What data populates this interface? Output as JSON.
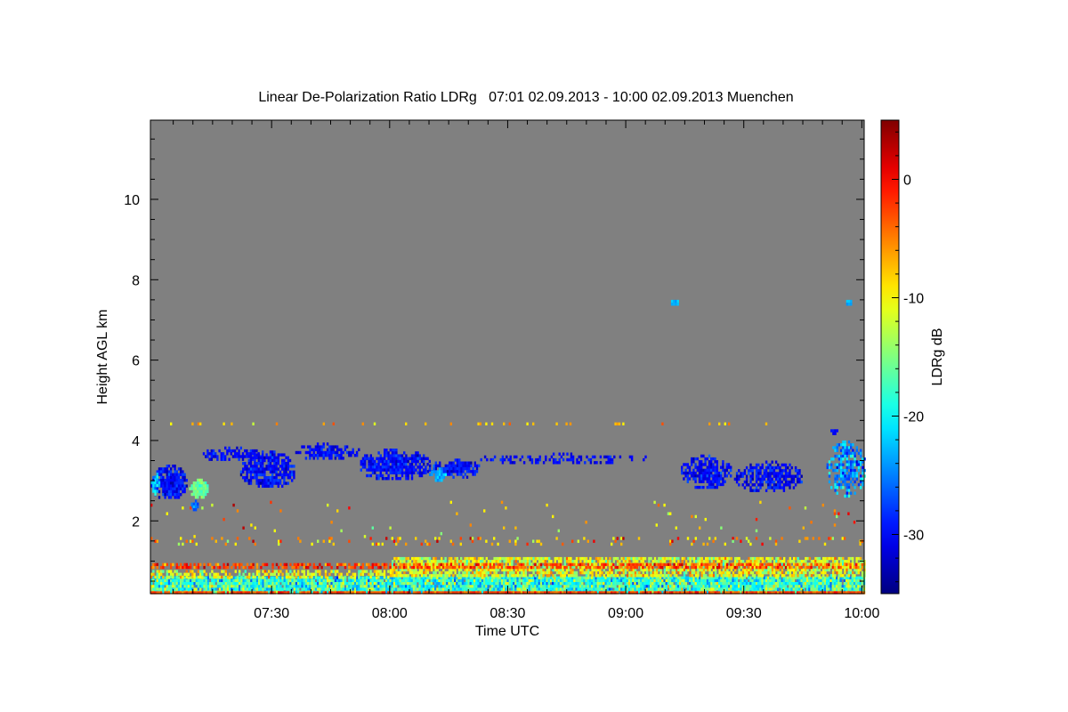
{
  "chart_data": {
    "type": "heatmap",
    "title": "Linear De-Polarization Ratio LDRg   07:01 02.09.2013 - 10:00 02.09.2013 Muenchen",
    "xlabel": "Time UTC",
    "ylabel": "Height AGL km",
    "colorbar_label": "LDRg dB",
    "x_unit": "minutes after 07:00 UTC",
    "xlim": [
      -0.8,
      180.6
    ],
    "ylim": [
      0.19,
      11.97
    ],
    "clim": [
      -35,
      5
    ],
    "colormap": "jet",
    "no_data_color": "#808080",
    "x_ticks": [
      {
        "value": 30,
        "label": "07:30"
      },
      {
        "value": 60,
        "label": "08:00"
      },
      {
        "value": 90,
        "label": "08:30"
      },
      {
        "value": 120,
        "label": "09:00"
      },
      {
        "value": 150,
        "label": "09:30"
      },
      {
        "value": 180,
        "label": "10:00"
      }
    ],
    "y_ticks": [
      {
        "value": 2,
        "label": "2"
      },
      {
        "value": 4,
        "label": "4"
      },
      {
        "value": 6,
        "label": "6"
      },
      {
        "value": 8,
        "label": "8"
      },
      {
        "value": 10,
        "label": "10"
      }
    ],
    "colorbar_ticks": [
      {
        "value": 0,
        "label": "0"
      },
      {
        "value": -10,
        "label": "-10"
      },
      {
        "value": -20,
        "label": "-20"
      },
      {
        "value": -30,
        "label": "-30"
      }
    ],
    "features": [
      {
        "name": "cloud-west-edge",
        "t": [
          -0.8,
          8.5
        ],
        "h": [
          2.55,
          3.4
        ],
        "ldr": -30,
        "spread": 2,
        "density": 0.9
      },
      {
        "name": "cloud-west-edge-core",
        "t": [
          -0.8,
          1.5
        ],
        "h": [
          2.7,
          3.2
        ],
        "ldr": -22,
        "spread": 3,
        "density": 0.9
      },
      {
        "name": "plume-green",
        "t": [
          9,
          14
        ],
        "h": [
          2.6,
          3.05
        ],
        "ldr": -16,
        "spread": 1.5,
        "density": 0.95
      },
      {
        "name": "plume-fall",
        "t": [
          9.5,
          11
        ],
        "h": [
          2.2,
          2.6
        ],
        "ldr": -26,
        "spread": 2,
        "density": 0.8
      },
      {
        "name": "cloud-strip-1",
        "t": [
          12.5,
          27
        ],
        "h": [
          3.5,
          3.85
        ],
        "ldr": -30,
        "spread": 1.5,
        "density": 0.6
      },
      {
        "name": "cloud-blob-1",
        "t": [
          22,
          36
        ],
        "h": [
          2.85,
          3.75
        ],
        "ldr": -30,
        "spread": 2,
        "density": 0.8
      },
      {
        "name": "cloud-strip-2",
        "t": [
          36,
          52
        ],
        "h": [
          3.55,
          3.95
        ],
        "ldr": -30,
        "spread": 1.5,
        "density": 0.75
      },
      {
        "name": "cloud-blob-2",
        "t": [
          52,
          70
        ],
        "h": [
          3.05,
          3.8
        ],
        "ldr": -30,
        "spread": 2,
        "density": 0.8
      },
      {
        "name": "cloud-blob-3",
        "t": [
          69.5,
          83
        ],
        "h": [
          3.1,
          3.55
        ],
        "ldr": -30,
        "spread": 2,
        "density": 0.8
      },
      {
        "name": "cloud-blob-3-cyan",
        "t": [
          70,
          74
        ],
        "h": [
          3.0,
          3.4
        ],
        "ldr": -23,
        "spread": 2,
        "density": 0.8
      },
      {
        "name": "cloud-strip-3",
        "t": [
          83,
          126
        ],
        "h": [
          3.45,
          3.7
        ],
        "ldr": -30,
        "spread": 1.5,
        "density": 0.45
      },
      {
        "name": "cloud-blob-4",
        "t": [
          134,
          146.5
        ],
        "h": [
          2.85,
          3.65
        ],
        "ldr": -30,
        "spread": 2,
        "density": 0.8
      },
      {
        "name": "cloud-blob-5",
        "t": [
          147.5,
          164.5
        ],
        "h": [
          2.75,
          3.5
        ],
        "ldr": -30,
        "spread": 2,
        "density": 0.75
      },
      {
        "name": "cloud-east-edge",
        "t": [
          171,
          180.6
        ],
        "h": [
          2.65,
          4.0
        ],
        "ldr": -24,
        "spread": 4,
        "density": 0.7
      },
      {
        "name": "cloud-east-top",
        "t": [
          172,
          174
        ],
        "h": [
          4.2,
          4.35
        ],
        "ldr": -30,
        "spread": 1,
        "density": 0.8
      },
      {
        "name": "aerosol-bottom-layer",
        "t": [
          -0.8,
          180.6
        ],
        "h": [
          0.25,
          0.62
        ],
        "ldr": -18,
        "spread": 5,
        "density": 0.97
      },
      {
        "name": "aerosol-upper-layer-early",
        "t": [
          -0.8,
          60
        ],
        "h": [
          0.62,
          0.78
        ],
        "ldr": -11,
        "spread": 4,
        "density": 0.45
      },
      {
        "name": "aerosol-upper-layer-late",
        "t": [
          60,
          180.6
        ],
        "h": [
          0.62,
          1.1
        ],
        "ldr": -11,
        "spread": 4,
        "density": 0.75
      },
      {
        "name": "red-band",
        "t": [
          -0.8,
          180.6
        ],
        "h": [
          0.82,
          0.95
        ],
        "ldr": -3,
        "spread": 3,
        "density": 0.6
      },
      {
        "name": "bottom-red-line",
        "t": [
          -0.8,
          180.6
        ],
        "h": [
          0.19,
          0.25
        ],
        "ldr": -3,
        "spread": 2,
        "density": 0.9
      },
      {
        "name": "speckle-1-5km",
        "t": [
          -0.8,
          180.6
        ],
        "h": [
          1.4,
          1.6
        ],
        "ldr": -6,
        "spread": 5,
        "density": 0.12
      },
      {
        "name": "speckle-4-4km",
        "t": [
          -0.8,
          160
        ],
        "h": [
          4.38,
          4.45
        ],
        "ldr": -7,
        "spread": 3,
        "density": 0.12
      },
      {
        "name": "speckle-mid",
        "t": [
          -0.8,
          180.6
        ],
        "h": [
          1.6,
          2.5
        ],
        "ldr": -8,
        "spread": 6,
        "density": 0.015
      },
      {
        "name": "speck-7-4km-a",
        "t": [
          131.5,
          133
        ],
        "h": [
          7.38,
          7.5
        ],
        "ldr": -23,
        "spread": 1,
        "density": 1
      },
      {
        "name": "speck-7-4km-b",
        "t": [
          176,
          177
        ],
        "h": [
          7.38,
          7.5
        ],
        "ldr": -23,
        "spread": 1,
        "density": 1
      }
    ]
  }
}
